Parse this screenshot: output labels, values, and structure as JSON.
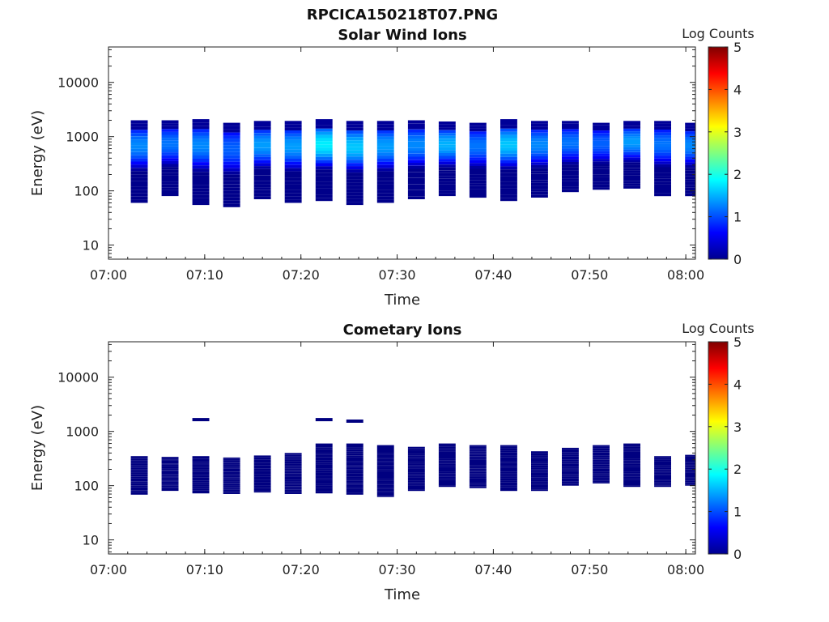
{
  "figure": {
    "title": "RPCICA150218T07.PNG",
    "colorbar_label": "Log Counts",
    "colormap": "jet"
  },
  "chart_data": [
    {
      "type": "heatmap",
      "title": "Solar Wind Ions",
      "xlabel": "Time",
      "ylabel": "Energy (eV)",
      "x_ticks": [
        "07:00",
        "07:10",
        "07:20",
        "07:30",
        "07:40",
        "07:50",
        "08:00"
      ],
      "y_ticks": [
        "10",
        "100",
        "1000",
        "10000"
      ],
      "y_scale": "log",
      "ylim": [
        5.5,
        45000
      ],
      "xlim_minutes": [
        0,
        61
      ],
      "colorbar": {
        "label": "Log Counts",
        "range": [
          0,
          5
        ],
        "ticks": [
          "0",
          "1",
          "2",
          "3",
          "4",
          "5"
        ]
      },
      "scans": [
        {
          "t": 3.2,
          "high": 2000,
          "low": 60,
          "peak_log": 1.3
        },
        {
          "t": 6.4,
          "high": 2000,
          "low": 80,
          "peak_log": 1.2
        },
        {
          "t": 9.6,
          "high": 2100,
          "low": 55,
          "peak_log": 1.3
        },
        {
          "t": 12.8,
          "high": 1800,
          "low": 50,
          "peak_log": 1.1
        },
        {
          "t": 16.0,
          "high": 1950,
          "low": 70,
          "peak_log": 1.4
        },
        {
          "t": 19.2,
          "high": 1950,
          "low": 60,
          "peak_log": 1.4
        },
        {
          "t": 22.4,
          "high": 2100,
          "low": 65,
          "peak_log": 1.8
        },
        {
          "t": 25.6,
          "high": 1950,
          "low": 55,
          "peak_log": 1.6
        },
        {
          "t": 28.8,
          "high": 1950,
          "low": 60,
          "peak_log": 1.4
        },
        {
          "t": 32.0,
          "high": 2000,
          "low": 70,
          "peak_log": 1.3
        },
        {
          "t": 35.2,
          "high": 1900,
          "low": 80,
          "peak_log": 1.5
        },
        {
          "t": 38.4,
          "high": 1800,
          "low": 75,
          "peak_log": 1.2
        },
        {
          "t": 41.6,
          "high": 2100,
          "low": 65,
          "peak_log": 1.6
        },
        {
          "t": 44.8,
          "high": 1950,
          "low": 75,
          "peak_log": 1.3
        },
        {
          "t": 48.0,
          "high": 1950,
          "low": 95,
          "peak_log": 1.2
        },
        {
          "t": 51.2,
          "high": 1800,
          "low": 105,
          "peak_log": 1.1
        },
        {
          "t": 54.4,
          "high": 1950,
          "low": 110,
          "peak_log": 1.4
        },
        {
          "t": 57.6,
          "high": 1950,
          "low": 80,
          "peak_log": 1.2
        },
        {
          "t": 60.8,
          "high": 1800,
          "low": 80,
          "peak_log": 1.3
        }
      ]
    },
    {
      "type": "heatmap",
      "title": "Cometary Ions",
      "xlabel": "Time",
      "ylabel": "Energy (eV)",
      "x_ticks": [
        "07:00",
        "07:10",
        "07:20",
        "07:30",
        "07:40",
        "07:50",
        "08:00"
      ],
      "y_ticks": [
        "10",
        "100",
        "1000",
        "10000"
      ],
      "y_scale": "log",
      "ylim": [
        5.5,
        45000
      ],
      "xlim_minutes": [
        0,
        61
      ],
      "colorbar": {
        "label": "Log Counts",
        "range": [
          0,
          5
        ],
        "ticks": [
          "0",
          "1",
          "2",
          "3",
          "4",
          "5"
        ]
      },
      "scans": [
        {
          "t": 3.2,
          "high": 350,
          "low": 68,
          "log": 0
        },
        {
          "t": 6.4,
          "high": 340,
          "low": 80,
          "log": 0
        },
        {
          "t": 9.6,
          "high": 350,
          "low": 72,
          "log": 0
        },
        {
          "t": 12.8,
          "high": 330,
          "low": 70,
          "log": 0
        },
        {
          "t": 16.0,
          "high": 360,
          "low": 75,
          "log": 0
        },
        {
          "t": 19.2,
          "high": 400,
          "low": 70,
          "log": 0
        },
        {
          "t": 22.4,
          "high": 600,
          "low": 72,
          "log": 0
        },
        {
          "t": 25.6,
          "high": 600,
          "low": 68,
          "log": 0
        },
        {
          "t": 28.8,
          "high": 560,
          "low": 62,
          "log": 0
        },
        {
          "t": 32.0,
          "high": 520,
          "low": 80,
          "log": 0
        },
        {
          "t": 35.2,
          "high": 600,
          "low": 95,
          "log": 0
        },
        {
          "t": 38.4,
          "high": 560,
          "low": 90,
          "log": 0
        },
        {
          "t": 41.6,
          "high": 560,
          "low": 80,
          "log": 0
        },
        {
          "t": 44.8,
          "high": 430,
          "low": 80,
          "log": 0
        },
        {
          "t": 48.0,
          "high": 500,
          "low": 100,
          "log": 0
        },
        {
          "t": 51.2,
          "high": 560,
          "low": 110,
          "log": 0
        },
        {
          "t": 54.4,
          "high": 600,
          "low": 95,
          "log": 0
        },
        {
          "t": 57.6,
          "high": 350,
          "low": 95,
          "log": 0
        },
        {
          "t": 60.8,
          "high": 370,
          "low": 100,
          "log": 0
        }
      ],
      "isolated": [
        {
          "t": 9.6,
          "e": 1650,
          "log": 0
        },
        {
          "t": 22.4,
          "e": 1650,
          "log": 0
        },
        {
          "t": 25.6,
          "e": 1550,
          "log": 0
        }
      ]
    }
  ]
}
